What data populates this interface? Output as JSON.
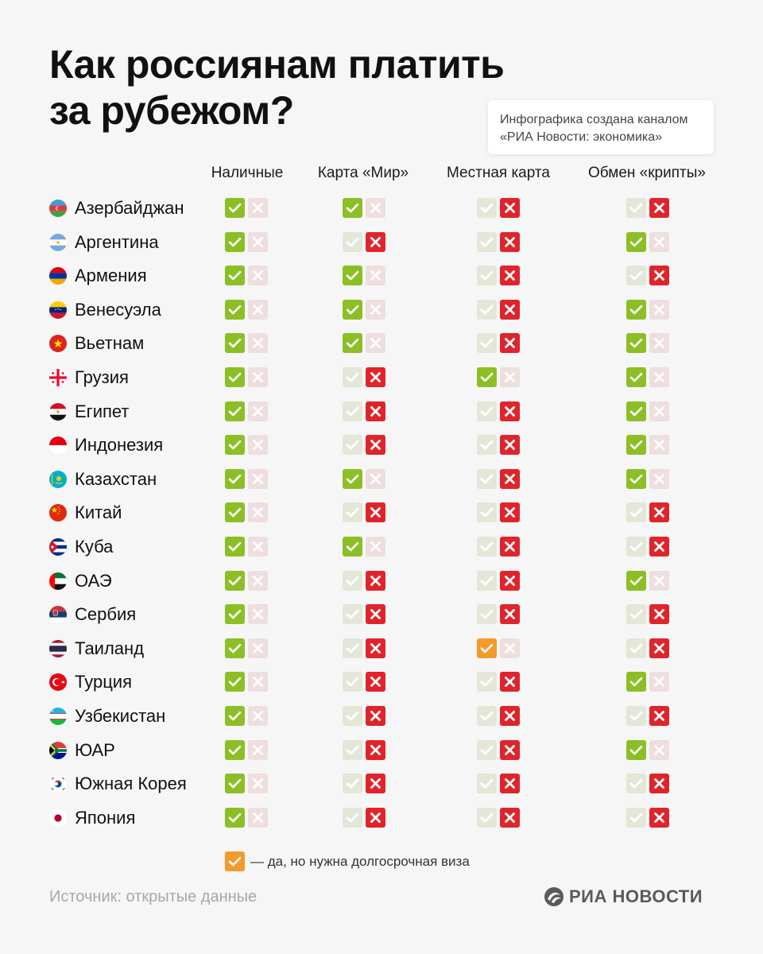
{
  "title": {
    "line1": "Как россиянам платить",
    "line2": "за рубежом?"
  },
  "credit": {
    "line1": "Инфографика создана каналом",
    "line2": "«РИА Новости: экономика»"
  },
  "columns": [
    "Наличные",
    "Карта «Мир»",
    "Местная карта",
    "Обмен «крипты»"
  ],
  "colors": {
    "yes": "#8cbf26",
    "no": "#e0242b",
    "visa": "#f39a2d",
    "yes_faded": "#e2e7d8",
    "no_faded": "#eedede"
  },
  "countries": [
    {
      "name": "Азербайджан",
      "flag": "azerbaijan-flag",
      "values": [
        "yes",
        "yes",
        "no",
        "no"
      ]
    },
    {
      "name": "Аргентина",
      "flag": "argentina-flag",
      "values": [
        "yes",
        "no",
        "no",
        "yes"
      ]
    },
    {
      "name": "Армения",
      "flag": "armenia-flag",
      "values": [
        "yes",
        "yes",
        "no",
        "no"
      ]
    },
    {
      "name": "Венесуэла",
      "flag": "venezuela-flag",
      "values": [
        "yes",
        "yes",
        "no",
        "yes"
      ]
    },
    {
      "name": "Вьетнам",
      "flag": "vietnam-flag",
      "values": [
        "yes",
        "yes",
        "no",
        "yes"
      ]
    },
    {
      "name": "Грузия",
      "flag": "georgia-flag",
      "values": [
        "yes",
        "no",
        "yes",
        "yes"
      ]
    },
    {
      "name": "Египет",
      "flag": "egypt-flag",
      "values": [
        "yes",
        "no",
        "no",
        "yes"
      ]
    },
    {
      "name": "Индонезия",
      "flag": "indonesia-flag",
      "values": [
        "yes",
        "no",
        "no",
        "yes"
      ]
    },
    {
      "name": "Казахстан",
      "flag": "kazakhstan-flag",
      "values": [
        "yes",
        "yes",
        "no",
        "yes"
      ]
    },
    {
      "name": "Китай",
      "flag": "china-flag",
      "values": [
        "yes",
        "no",
        "no",
        "no"
      ]
    },
    {
      "name": "Куба",
      "flag": "cuba-flag",
      "values": [
        "yes",
        "yes",
        "no",
        "no"
      ]
    },
    {
      "name": "ОАЭ",
      "flag": "uae-flag",
      "values": [
        "yes",
        "no",
        "no",
        "yes"
      ]
    },
    {
      "name": "Сербия",
      "flag": "serbia-flag",
      "values": [
        "yes",
        "no",
        "no",
        "no"
      ]
    },
    {
      "name": "Таиланд",
      "flag": "thailand-flag",
      "values": [
        "yes",
        "no",
        "visa",
        "no"
      ]
    },
    {
      "name": "Турция",
      "flag": "turkey-flag",
      "values": [
        "yes",
        "no",
        "no",
        "yes"
      ]
    },
    {
      "name": "Узбекистан",
      "flag": "uzbekistan-flag",
      "values": [
        "yes",
        "no",
        "no",
        "no"
      ]
    },
    {
      "name": "ЮАР",
      "flag": "south-africa-flag",
      "values": [
        "yes",
        "no",
        "no",
        "yes"
      ]
    },
    {
      "name": "Южная Корея",
      "flag": "south-korea-flag",
      "values": [
        "yes",
        "no",
        "no",
        "no"
      ]
    },
    {
      "name": "Япония",
      "flag": "japan-flag",
      "values": [
        "yes",
        "no",
        "no",
        "no"
      ]
    }
  ],
  "legend": {
    "icon": "orange-check-icon",
    "text": "— да, но нужна долгосрочная виза"
  },
  "source": "Источник: открытые данные",
  "logo": {
    "icon": "ria-logo-icon",
    "text": "РИА НОВОСТИ"
  }
}
